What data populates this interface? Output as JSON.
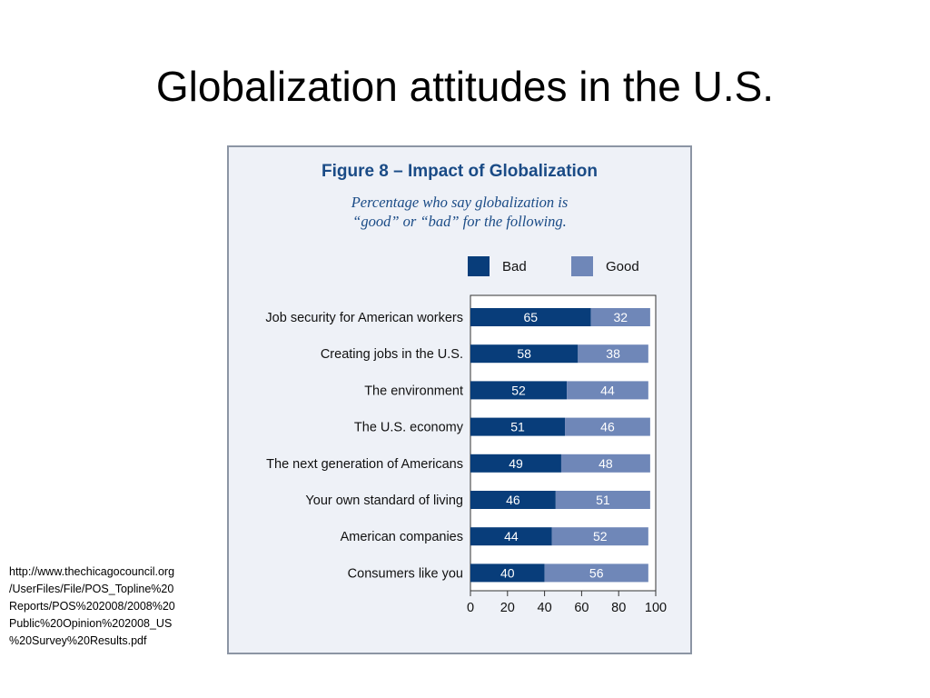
{
  "slide": {
    "title": "Globalization attitudes in the U.S.",
    "source": "http://www.thechicagocouncil.org\n/UserFiles/File/POS_Topline%20\nReports/POS%202008/2008%20\nPublic%20Opinion%202008_US\n%20Survey%20Results.pdf"
  },
  "colors": {
    "bad": "#083d7a",
    "good": "#6f87b8",
    "panel": "#eef1f7"
  },
  "chart_data": {
    "type": "bar",
    "orientation": "horizontal",
    "stacked": true,
    "title": "Figure 8 – Impact of Globalization",
    "subtitle": "Percentage who say globalization is\n“good” or “bad” for the following.",
    "categories": [
      "Job security for American workers",
      "Creating jobs in the U.S.",
      "The environment",
      "The U.S. economy",
      "The next generation of Americans",
      "Your own standard of living",
      "American companies",
      "Consumers like you"
    ],
    "series": [
      {
        "name": "Bad",
        "color": "#083d7a",
        "values": [
          65,
          58,
          52,
          51,
          49,
          46,
          44,
          40
        ]
      },
      {
        "name": "Good",
        "color": "#6f87b8",
        "values": [
          32,
          38,
          44,
          46,
          48,
          51,
          52,
          56
        ]
      }
    ],
    "xlim": [
      0,
      100
    ],
    "xticks": [
      0,
      20,
      40,
      60,
      80,
      100
    ],
    "legend": "top-right",
    "grid": false
  }
}
